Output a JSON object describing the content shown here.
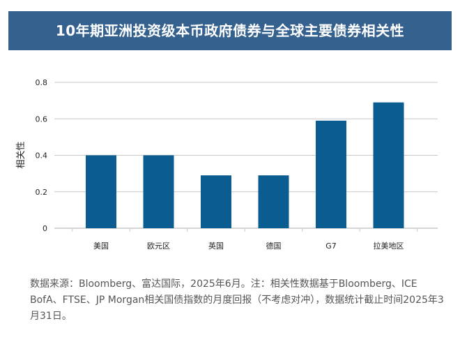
{
  "header": {
    "title": "10年期亚洲投资级本币政府债券与全球主要债券相关性"
  },
  "colors": {
    "header_bg": "#35618f",
    "bar": "#0b5d91",
    "grid": "#c8c8c8"
  },
  "chart_data": {
    "type": "bar",
    "title": "",
    "xlabel": "",
    "ylabel": "相关性",
    "categories": [
      "美国",
      "欧元区",
      "英国",
      "德国",
      "G7",
      "拉美地区"
    ],
    "values": [
      0.4,
      0.4,
      0.29,
      0.29,
      0.59,
      0.69
    ],
    "ylim": [
      0,
      0.8
    ],
    "yticks": [
      "0",
      "0.2",
      "0.4",
      "0.6",
      "0.8"
    ],
    "grid": true
  },
  "footnote": "数据来源：Bloomberg、富达国际，2025年6月。注：相关性数据基于Bloomberg、ICE BofA、FTSE、JP Morgan相关国债指数的月度回报（不考虑对冲），数据统计截止时间2025年3月31日。"
}
